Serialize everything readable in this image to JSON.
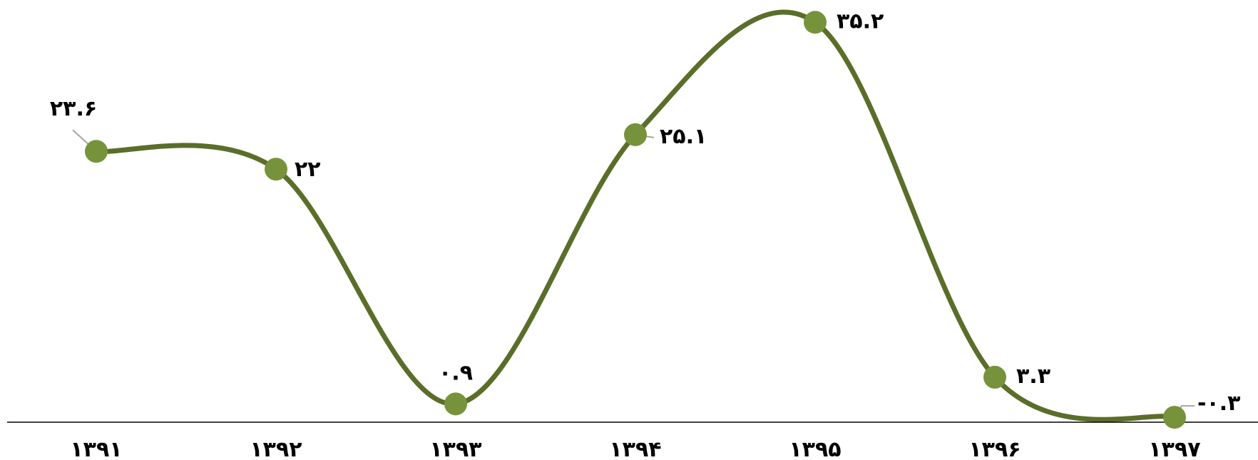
{
  "chart_data": {
    "type": "line",
    "title": "",
    "xlabel": "",
    "ylabel": "",
    "categories": [
      "۱۳۹۱",
      "۱۳۹۲",
      "۱۳۹۳",
      "۱۳۹۴",
      "۱۳۹۵",
      "۱۳۹۶",
      "۱۳۹۷"
    ],
    "series": [
      {
        "values": [
          23.6,
          22,
          0.9,
          25.1,
          35.2,
          3.3,
          -0.3
        ],
        "labels": [
          "۲۳.۶",
          "۲۲",
          "۰.۹",
          "۲۵.۱",
          "۳۵.۲",
          "۳.۳",
          "-۰.۳"
        ]
      }
    ],
    "smooth": true,
    "grid": false,
    "legend": "none",
    "colors": {
      "line": "#5a6e2a",
      "marker": "#76933c",
      "axis": "#000000",
      "leader": "#a6a6a6"
    }
  }
}
